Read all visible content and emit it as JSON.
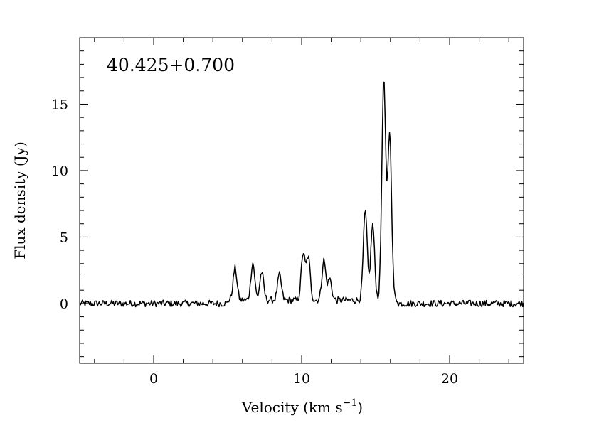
{
  "chart_data": {
    "type": "line",
    "title": "40.425+0.700",
    "xlabel": "Velocity (km s",
    "xlabel_exponent": "−1",
    "xlabel_close": ")",
    "ylabel": "Flux density (Jy)",
    "xlim": [
      -5,
      25
    ],
    "ylim": [
      -4.5,
      20
    ],
    "xticks_major": [
      0,
      10,
      20
    ],
    "xtick_labels": [
      "0",
      "10",
      "20"
    ],
    "yticks_major": [
      0,
      5,
      10,
      15
    ],
    "ytick_labels": [
      "0",
      "5",
      "10",
      "15"
    ],
    "grid": false,
    "legend": "none",
    "color": "#000000",
    "peaks": [
      {
        "x": 5.5,
        "y": 2.4
      },
      {
        "x": 6.7,
        "y": 2.8
      },
      {
        "x": 7.3,
        "y": 2.1
      },
      {
        "x": 8.5,
        "y": 1.9
      },
      {
        "x": 10.1,
        "y": 3.5
      },
      {
        "x": 10.45,
        "y": 3.2
      },
      {
        "x": 11.5,
        "y": 3.0
      },
      {
        "x": 11.9,
        "y": 1.6
      },
      {
        "x": 14.3,
        "y": 6.7
      },
      {
        "x": 14.8,
        "y": 5.7
      },
      {
        "x": 15.55,
        "y": 16.6
      },
      {
        "x": 15.95,
        "y": 12.6
      }
    ]
  }
}
